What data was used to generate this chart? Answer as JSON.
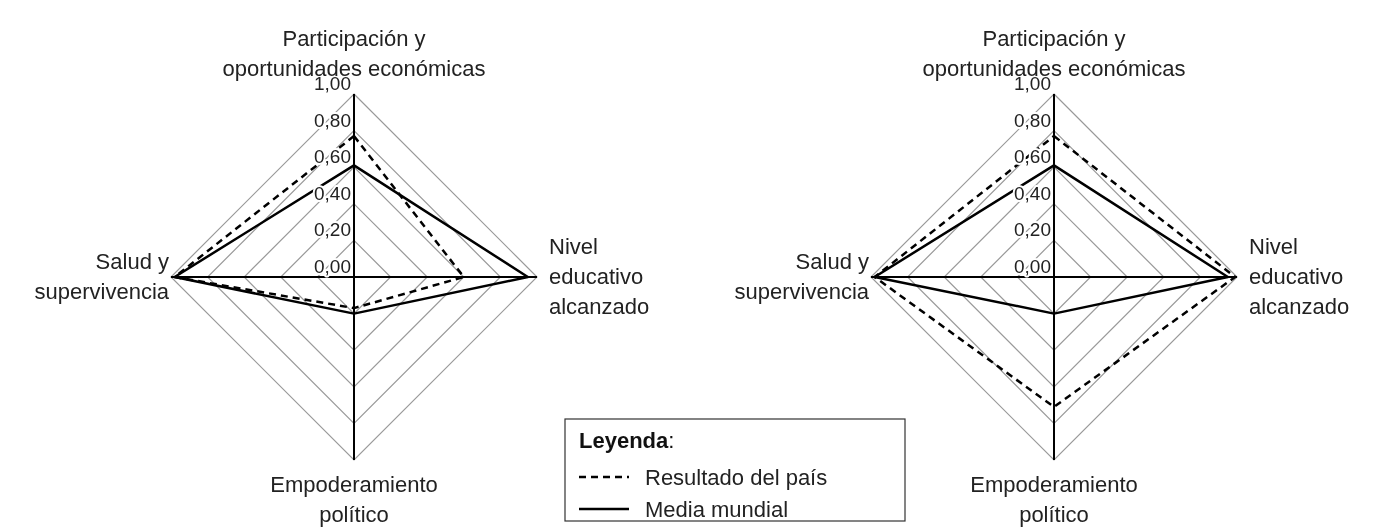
{
  "chart_data": [
    {
      "type": "radar",
      "categories": [
        "Participación y\noportunidades económicas",
        "Nivel\neducativo\nalcanzado",
        "Empoderamiento\npolítico",
        "Salud y\nsupervivencia"
      ],
      "ylim": [
        0,
        1
      ],
      "yticks": [
        {
          "value": 0,
          "label": "0,00"
        },
        {
          "value": 0.2,
          "label": "0,20"
        },
        {
          "value": 0.4,
          "label": "0,40"
        },
        {
          "value": 0.6,
          "label": "0,60"
        },
        {
          "value": 0.8,
          "label": "0,80"
        },
        {
          "value": 1,
          "label": "1,00"
        }
      ],
      "grid": true,
      "legend": "bottom right",
      "legend_title": "Leyenda:",
      "marker": "none",
      "series": [
        {
          "name": "Resultado del país",
          "color": "#000000",
          "line_style": "dashed",
          "values": [
            0.77,
            0.6,
            0.17,
            0.98
          ]
        },
        {
          "name": "Media mundial",
          "color": "#000000",
          "line_style": "solid",
          "values": [
            0.61,
            0.95,
            0.2,
            0.98
          ]
        }
      ]
    },
    {
      "type": "radar",
      "categories": [
        "Participación y\noportunidades económicas",
        "Nivel\neducativo\nalcanzado",
        "Empoderamiento\npolítico",
        "Salud y\nsupervivencia"
      ],
      "ylim": [
        0,
        1
      ],
      "yticks": [
        {
          "value": 0,
          "label": "0,00"
        },
        {
          "value": 0.2,
          "label": "0,20"
        },
        {
          "value": 0.4,
          "label": "0,40"
        },
        {
          "value": 0.6,
          "label": "0,60"
        },
        {
          "value": 0.8,
          "label": "0,80"
        },
        {
          "value": 1,
          "label": "1,00"
        }
      ],
      "grid": true,
      "marker": "none",
      "series": [
        {
          "color": "#000000",
          "line_style": "dashed",
          "values": [
            0.77,
            0.99,
            0.71,
            0.98
          ]
        },
        {
          "color": "#000000",
          "line_style": "solid",
          "values": [
            0.61,
            0.95,
            0.2,
            0.98
          ]
        }
      ]
    }
  ]
}
